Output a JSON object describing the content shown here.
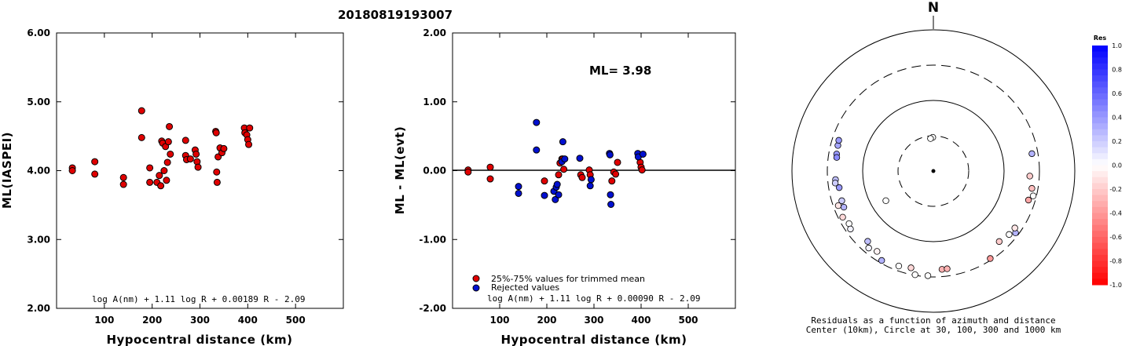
{
  "title": "20180819193007",
  "chart_data": [
    {
      "type": "scatter",
      "panel": "left",
      "xlabel": "Hypocentral distance (km)",
      "ylabel": "ML(IASPEI)",
      "xlim": [
        0,
        600
      ],
      "ylim": [
        2.0,
        6.0
      ],
      "xticks": [
        "100",
        "200",
        "300",
        "400",
        "500"
      ],
      "yticks": [
        "2.00",
        "3.00",
        "4.00",
        "5.00",
        "6.00"
      ],
      "formula": "log A(nm) + 1.11 log R + 0.00189 R - 2.09",
      "point_color": "#e00000",
      "points": [
        [
          33,
          4.04
        ],
        [
          33,
          4.0
        ],
        [
          80,
          4.13
        ],
        [
          80,
          3.95
        ],
        [
          140,
          3.9
        ],
        [
          140,
          3.8
        ],
        [
          178,
          4.87
        ],
        [
          178,
          4.48
        ],
        [
          195,
          4.04
        ],
        [
          195,
          3.83
        ],
        [
          210,
          3.83
        ],
        [
          215,
          3.93
        ],
        [
          218,
          3.78
        ],
        [
          220,
          4.43
        ],
        [
          222,
          4.4
        ],
        [
          225,
          4.0
        ],
        [
          228,
          4.35
        ],
        [
          230,
          3.86
        ],
        [
          232,
          4.12
        ],
        [
          234,
          4.42
        ],
        [
          236,
          4.64
        ],
        [
          238,
          4.24
        ],
        [
          270,
          4.44
        ],
        [
          270,
          4.22
        ],
        [
          272,
          4.16
        ],
        [
          280,
          4.17
        ],
        [
          290,
          4.3
        ],
        [
          292,
          4.24
        ],
        [
          294,
          4.13
        ],
        [
          296,
          4.05
        ],
        [
          333,
          4.57
        ],
        [
          334,
          4.55
        ],
        [
          335,
          3.98
        ],
        [
          336,
          3.83
        ],
        [
          338,
          4.2
        ],
        [
          342,
          4.33
        ],
        [
          346,
          4.26
        ],
        [
          350,
          4.32
        ],
        [
          393,
          4.62
        ],
        [
          394,
          4.55
        ],
        [
          398,
          4.52
        ],
        [
          400,
          4.45
        ],
        [
          402,
          4.38
        ],
        [
          404,
          4.62
        ]
      ]
    },
    {
      "type": "scatter",
      "panel": "middle",
      "xlabel": "Hypocentral distance (km)",
      "ylabel": "ML - ML(evt)",
      "xlim": [
        0,
        600
      ],
      "ylim": [
        -2.0,
        2.0
      ],
      "xticks": [
        "100",
        "200",
        "300",
        "400",
        "500"
      ],
      "yticks": [
        "-2.00",
        "-1.00",
        "0.00",
        "1.00",
        "2.00"
      ],
      "ml_label": "ML= 3.98",
      "formula": "log A(nm) + 1.11 log R + 0.00090 R - 2.09",
      "legend": [
        {
          "label": "25%-75% values for trimmed mean",
          "color": "#e00000"
        },
        {
          "label": "Rejected values",
          "color": "#0010d0"
        }
      ],
      "series": [
        {
          "name": "25%-75% values for trimmed mean",
          "color": "#e00000",
          "points": [
            [
              33,
              0.01
            ],
            [
              33,
              -0.02
            ],
            [
              80,
              0.05
            ],
            [
              80,
              -0.12
            ],
            [
              195,
              -0.15
            ],
            [
              225,
              -0.06
            ],
            [
              228,
              0.11
            ],
            [
              232,
              0.17
            ],
            [
              234,
              0.17
            ],
            [
              236,
              0.02
            ],
            [
              272,
              -0.06
            ],
            [
              275,
              -0.1
            ],
            [
              290,
              0.01
            ],
            [
              292,
              -0.06
            ],
            [
              338,
              -0.15
            ],
            [
              342,
              -0.02
            ],
            [
              346,
              -0.05
            ],
            [
              350,
              0.12
            ],
            [
              398,
              0.12
            ],
            [
              400,
              0.05
            ],
            [
              402,
              0.01
            ]
          ]
        },
        {
          "name": "Rejected values",
          "color": "#0010d0",
          "points": [
            [
              140,
              -0.23
            ],
            [
              140,
              -0.33
            ],
            [
              178,
              0.7
            ],
            [
              178,
              0.3
            ],
            [
              195,
              -0.36
            ],
            [
              215,
              -0.3
            ],
            [
              218,
              -0.42
            ],
            [
              220,
              -0.24
            ],
            [
              222,
              -0.2
            ],
            [
              225,
              -0.35
            ],
            [
              232,
              0.13
            ],
            [
              234,
              0.42
            ],
            [
              238,
              0.17
            ],
            [
              270,
              0.18
            ],
            [
              292,
              -0.22
            ],
            [
              294,
              -0.13
            ],
            [
              333,
              0.25
            ],
            [
              334,
              0.23
            ],
            [
              335,
              -0.35
            ],
            [
              336,
              -0.49
            ],
            [
              393,
              0.25
            ],
            [
              394,
              0.2
            ],
            [
              404,
              0.24
            ]
          ]
        }
      ]
    },
    {
      "type": "scatter",
      "panel": "right",
      "subtype": "polar-residuals",
      "north_label": "N",
      "caption_line1": "Residuals as a function of azimuth and distance",
      "caption_line2": "Center (10km), Circle at 30, 100, 300 and 1000 km",
      "colorbar_title": "Res",
      "colorbar_ticks": [
        "1.0",
        "0.8",
        "0.6",
        "0.4",
        "0.2",
        "0.0",
        "-0.2",
        "-0.4",
        "-0.6",
        "-0.8",
        "-1.0"
      ],
      "ring_distances_km": [
        30,
        100,
        300,
        1000
      ],
      "stations": [
        {
          "az": -1,
          "dist": 30,
          "res": 0.0
        },
        {
          "az": -5,
          "dist": 29,
          "res": 0.0
        },
        {
          "az": -122,
          "dist": 62,
          "res": 0.0
        },
        {
          "az": -75,
          "dist": 250,
          "res": 0.35
        },
        {
          "az": -72,
          "dist": 255,
          "res": 0.4
        },
        {
          "az": -80,
          "dist": 245,
          "res": 0.4
        },
        {
          "az": -82,
          "dist": 240,
          "res": 0.45
        },
        {
          "az": -95,
          "dist": 245,
          "res": 0.25
        },
        {
          "az": -97,
          "dist": 250,
          "res": 0.2
        },
        {
          "az": -100,
          "dist": 225,
          "res": 0.4
        },
        {
          "az": -108,
          "dist": 230,
          "res": 0.2
        },
        {
          "az": -110,
          "dist": 270,
          "res": -0.1
        },
        {
          "az": -112,
          "dist": 232,
          "res": 0.3
        },
        {
          "az": -117,
          "dist": 275,
          "res": -0.15
        },
        {
          "az": -122,
          "dist": 255,
          "res": 0.0
        },
        {
          "az": -125,
          "dist": 270,
          "res": 0.05
        },
        {
          "az": -137,
          "dist": 230,
          "res": 0.25
        },
        {
          "az": -140,
          "dist": 265,
          "res": 0.05
        },
        {
          "az": -145,
          "dist": 245,
          "res": -0.05
        },
        {
          "az": -150,
          "dist": 290,
          "res": 0.3
        },
        {
          "az": -160,
          "dist": 270,
          "res": 0.0
        },
        {
          "az": -170,
          "dist": 310,
          "res": 0.0
        },
        {
          "az": -167,
          "dist": 255,
          "res": -0.15
        },
        {
          "az": -177,
          "dist": 305,
          "res": 0.0
        },
        {
          "az": 175,
          "dist": 250,
          "res": -0.3
        },
        {
          "az": 172,
          "dist": 250,
          "res": -0.3
        },
        {
          "az": 147,
          "dist": 300,
          "res": -0.4
        },
        {
          "az": 137,
          "dist": 232,
          "res": -0.2
        },
        {
          "az": 127,
          "dist": 285,
          "res": 0.3
        },
        {
          "az": 130,
          "dist": 250,
          "res": 0.0
        },
        {
          "az": 125,
          "dist": 255,
          "res": -0.1
        },
        {
          "az": 107,
          "dist": 255,
          "res": -0.35
        },
        {
          "az": 104,
          "dist": 285,
          "res": 0.0
        },
        {
          "az": 100,
          "dist": 260,
          "res": -0.25
        },
        {
          "az": 93,
          "dist": 232,
          "res": -0.2
        },
        {
          "az": 80,
          "dist": 260,
          "res": 0.3
        }
      ]
    }
  ]
}
